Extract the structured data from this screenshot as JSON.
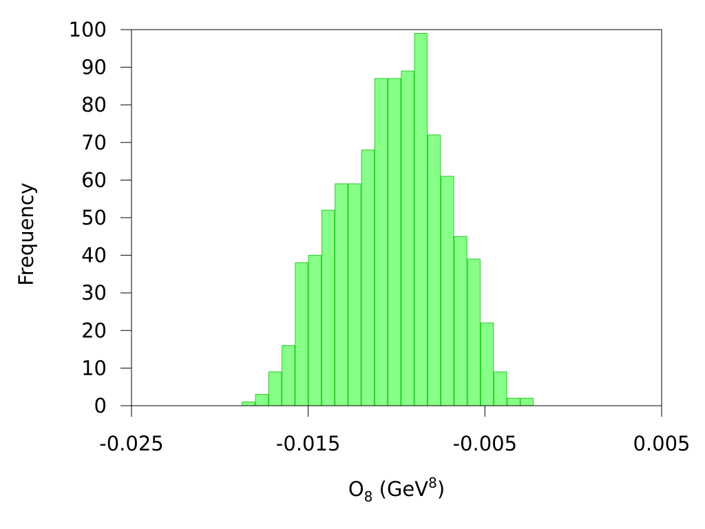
{
  "chart_data": {
    "type": "bar",
    "title": "",
    "xlabel": {
      "base": "O",
      "base_sub": "8",
      "unit_open": " (GeV",
      "unit_sup": "8",
      "unit_close": ")"
    },
    "ylabel": "Frequency",
    "xlim": [
      -0.025,
      0.005
    ],
    "ylim": [
      0,
      100
    ],
    "x_ticks": [
      -0.025,
      -0.015,
      -0.005,
      0.005
    ],
    "x_tick_labels": [
      "-0.025",
      "-0.015",
      "-0.005",
      "0.005"
    ],
    "y_ticks": [
      0,
      10,
      20,
      30,
      40,
      50,
      60,
      70,
      80,
      90,
      100
    ],
    "y_tick_labels": [
      "0",
      "10",
      "20",
      "30",
      "40",
      "50",
      "60",
      "70",
      "80",
      "90",
      "100"
    ],
    "grid": false,
    "bar_fill": "#88ff88",
    "bar_stroke": "#22cc22",
    "bins": [
      {
        "x0": -0.01875,
        "x1": -0.018,
        "value": 1
      },
      {
        "x0": -0.018,
        "x1": -0.01725,
        "value": 3
      },
      {
        "x0": -0.01725,
        "x1": -0.0165,
        "value": 9
      },
      {
        "x0": -0.0165,
        "x1": -0.01575,
        "value": 16
      },
      {
        "x0": -0.01575,
        "x1": -0.015,
        "value": 38
      },
      {
        "x0": -0.015,
        "x1": -0.01425,
        "value": 40
      },
      {
        "x0": -0.01425,
        "x1": -0.0135,
        "value": 52
      },
      {
        "x0": -0.0135,
        "x1": -0.01275,
        "value": 59
      },
      {
        "x0": -0.01275,
        "x1": -0.012,
        "value": 59
      },
      {
        "x0": -0.012,
        "x1": -0.01125,
        "value": 68
      },
      {
        "x0": -0.01125,
        "x1": -0.0105,
        "value": 87
      },
      {
        "x0": -0.0105,
        "x1": -0.00975,
        "value": 87
      },
      {
        "x0": -0.00975,
        "x1": -0.009,
        "value": 89
      },
      {
        "x0": -0.009,
        "x1": -0.00825,
        "value": 99
      },
      {
        "x0": -0.00825,
        "x1": -0.0075,
        "value": 72
      },
      {
        "x0": -0.0075,
        "x1": -0.00675,
        "value": 61
      },
      {
        "x0": -0.00675,
        "x1": -0.006,
        "value": 45
      },
      {
        "x0": -0.006,
        "x1": -0.00525,
        "value": 39
      },
      {
        "x0": -0.00525,
        "x1": -0.0045,
        "value": 22
      },
      {
        "x0": -0.0045,
        "x1": -0.00375,
        "value": 9
      },
      {
        "x0": -0.00375,
        "x1": -0.003,
        "value": 2
      },
      {
        "x0": -0.003,
        "x1": -0.00225,
        "value": 2
      }
    ]
  }
}
